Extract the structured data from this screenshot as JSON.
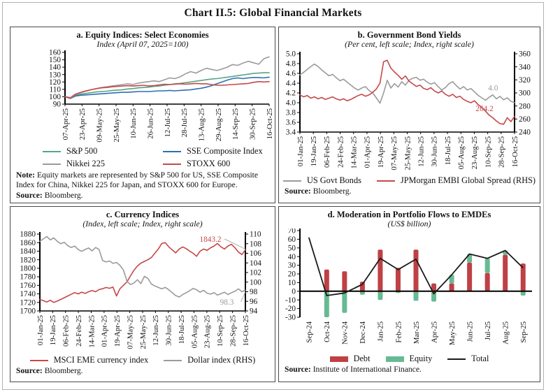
{
  "title": "Chart II.5: Global Financial Markets",
  "notes": {
    "a": {
      "label": "Note: ",
      "text": "Equity markets are represented by S&P 500 for US, SSE Composite Index for China, Nikkei 225 for Japan, and STOXX 600 for Europe."
    }
  },
  "sources": {
    "a": {
      "label": "Source: ",
      "text": "Bloomberg."
    },
    "b": {
      "label": "Source: ",
      "text": "Bloomberg."
    },
    "c": {
      "label": "Source: ",
      "text": "Bloomberg."
    },
    "d": {
      "label": "Source: ",
      "text": "Institute of International Finance."
    }
  },
  "colors": {
    "green": "#55a683",
    "blue": "#2e6fb0",
    "gray": "#9b9b9b",
    "red": "#c64848",
    "debt_red": "#bf4045",
    "equity_green": "#68ba93",
    "black": "#1a1a1a"
  },
  "chart_data": [
    {
      "type": "line",
      "panel": "a",
      "title": "a. Equity Indices: Select Economies",
      "subtitle": "Index (April 07, 2025=100)",
      "left_axis": {
        "min": 90,
        "max": 160,
        "ticks": [
          160,
          150,
          140,
          130,
          120,
          110,
          100,
          90
        ],
        "decimals": 0
      },
      "x_tick_labels": [
        "07-Apr-25",
        "23-Apr-25",
        "09-May-25",
        "25-May-25",
        "10-Jun-25",
        "26-Jun-25",
        "12-Jul-25",
        "28-Jul-25",
        "13-Aug-25",
        "29-Aug-25",
        "14-Sep-25",
        "30-Sep-25",
        "16-Oct-25"
      ],
      "grid": false,
      "legend_position": "bottom",
      "series": [
        {
          "name": "S&P 500",
          "color": "#55a683",
          "axis": "left",
          "values": [
            100,
            98.8,
            101.5,
            103.5,
            104.5,
            105.5,
            106.5,
            107,
            107.5,
            108.5,
            109,
            109.5,
            110.5,
            111,
            112,
            112.5,
            113,
            114,
            114.5,
            115.5,
            116.5,
            117.5,
            118,
            119,
            120,
            121,
            122,
            123,
            124,
            124.5,
            125.5,
            126.5,
            127.5,
            128.5,
            129.5,
            130.5,
            131.5,
            132,
            132.5,
            132.5
          ]
        },
        {
          "name": "SSE Composite Index",
          "color": "#2e6fb0",
          "axis": "left",
          "values": [
            100,
            97.5,
            101,
            102,
            102.5,
            103,
            103.5,
            104,
            104.5,
            105,
            105.5,
            106,
            106,
            106.5,
            107,
            107,
            107,
            107.5,
            108,
            108,
            108.5,
            108,
            108.5,
            109,
            109.5,
            110.5,
            111.5,
            113,
            115,
            117.5,
            120,
            122.5,
            124.5,
            125.5,
            124.5,
            125.5,
            126,
            126,
            125.5,
            126.5
          ]
        },
        {
          "name": "Nikkei 225",
          "color": "#9b9b9b",
          "axis": "left",
          "values": [
            100,
            97.5,
            103,
            105.5,
            107.5,
            109.5,
            111,
            112.5,
            113.5,
            114.5,
            115.5,
            116.5,
            117.5,
            116.5,
            118.5,
            119.5,
            120.5,
            121.5,
            120.5,
            123,
            125.5,
            124.5,
            127,
            131,
            134,
            132,
            135.5,
            138.5,
            137,
            135.5,
            137.5,
            140,
            143.5,
            142.5,
            145.5,
            148,
            146,
            144,
            151.5,
            154
          ]
        },
        {
          "name": "STOXX 600",
          "color": "#c64848",
          "axis": "left",
          "values": [
            100,
            98.5,
            103.5,
            106,
            108,
            109.5,
            111,
            112,
            112.5,
            113.5,
            114,
            114.5,
            115,
            114.5,
            115,
            115.5,
            114.5,
            115,
            116,
            117,
            116.5,
            117,
            117.5,
            117,
            117.5,
            118,
            117.5,
            117.5,
            116.5,
            115.5,
            115.5,
            116,
            116.5,
            117,
            117.5,
            118,
            119.5,
            120.5,
            120,
            120.5
          ]
        }
      ]
    },
    {
      "type": "line",
      "panel": "b",
      "title": "b. Government Bond Yields",
      "subtitle": "(Per cent, left scale; Index, right scale)",
      "left_axis": {
        "min": 3.4,
        "max": 5.0,
        "ticks": [
          5.0,
          4.8,
          4.6,
          4.4,
          4.2,
          4.0,
          3.8,
          3.6,
          3.4
        ],
        "decimals": 1
      },
      "right_axis": {
        "min": 240,
        "max": 360,
        "ticks": [
          360,
          340,
          320,
          300,
          280,
          260,
          240
        ],
        "decimals": 0
      },
      "x_tick_labels": [
        "01-Jan-25",
        "19-Jan-25",
        "06-Feb-25",
        "24-Feb-25",
        "14-Mar-25",
        "01-Apr-25",
        "19-Apr-25",
        "07-May-25",
        "25-May-25",
        "12-Jun-25",
        "30-Jun-25",
        "18-Jul-25",
        "05-Aug-25",
        "23-Aug-25",
        "10-Sep-25",
        "28-Sep-25",
        "16-Oct-25"
      ],
      "grid": false,
      "legend_position": "bottom",
      "annotations": [
        {
          "text": "4.0",
          "color": "#9b9b9b",
          "xf": 0.9,
          "yv": 4.25,
          "axis": "left"
        },
        {
          "text": "264.2",
          "color": "#c64848",
          "xf": 0.86,
          "yv": 272,
          "axis": "right"
        }
      ],
      "series": [
        {
          "name": "US Govt Bonds",
          "color": "#9b9b9b",
          "axis": "left",
          "values": [
            4.57,
            4.62,
            4.68,
            4.74,
            4.79,
            4.74,
            4.67,
            4.61,
            4.55,
            4.58,
            4.51,
            4.45,
            4.48,
            4.42,
            4.36,
            4.3,
            4.26,
            4.3,
            4.33,
            4.25,
            4.2,
            4.1,
            3.99,
            4.2,
            4.46,
            4.3,
            4.39,
            4.32,
            4.43,
            4.36,
            4.46,
            4.5,
            4.52,
            4.46,
            4.48,
            4.42,
            4.38,
            4.41,
            4.33,
            4.26,
            4.31,
            4.39,
            4.43,
            4.35,
            4.28,
            4.33,
            4.26,
            4.29,
            4.22,
            4.15,
            4.1,
            4.05,
            4.11,
            4.16,
            4.08,
            4.13,
            4.06,
            4.1,
            4.03,
            4.0
          ]
        },
        {
          "name": "JPMorgan EMBI Global Spread (RHS)",
          "color": "#c64848",
          "axis": "right",
          "values": [
            297,
            294,
            296,
            292,
            294,
            291,
            293,
            290,
            292,
            294,
            291,
            289,
            291,
            288,
            290,
            293,
            296,
            298,
            295,
            297,
            301,
            306,
            315,
            348,
            350,
            338,
            332,
            327,
            321,
            326,
            318,
            314,
            310,
            312,
            307,
            305,
            308,
            303,
            300,
            303,
            298,
            295,
            298,
            293,
            295,
            290,
            287,
            285,
            288,
            282,
            278,
            272,
            266,
            262,
            257,
            253,
            252,
            262,
            256,
            264.2
          ]
        }
      ]
    },
    {
      "type": "line",
      "panel": "c",
      "title": "c. Currency Indices",
      "subtitle": "(Index, left scale; Index, right scale)",
      "left_axis": {
        "min": 1700,
        "max": 1880,
        "ticks": [
          1880,
          1860,
          1840,
          1820,
          1800,
          1780,
          1760,
          1740,
          1720,
          1700
        ],
        "decimals": 0
      },
      "right_axis": {
        "min": 94,
        "max": 110,
        "ticks": [
          110,
          108,
          106,
          104,
          102,
          100,
          98,
          96,
          94
        ],
        "decimals": 0
      },
      "x_tick_labels": [
        "01-Jan-25",
        "19-Jan-25",
        "06-Feb-25",
        "24-Feb-25",
        "14-Mar-25",
        "01-Apr-25",
        "19-Apr-25",
        "07-May-25",
        "25-May-25",
        "12-Jun-25",
        "30-Jun-25",
        "18-Jul-25",
        "05-Aug-25",
        "23-Aug-25",
        "10-Sep-25",
        "28-Sep-25",
        "16-Oct-25"
      ],
      "grid": false,
      "legend_position": "bottom",
      "annotations": [
        {
          "text": "1843.2",
          "color": "#c64848",
          "xf": 0.83,
          "yv": 1862,
          "axis": "left",
          "conn": {
            "yv": 1845,
            "axis": "left"
          }
        },
        {
          "text": "98.3",
          "color": "#9b9b9b",
          "xf": 0.91,
          "yv": 95.3,
          "axis": "right",
          "conn": {
            "yv": 98.0,
            "axis": "right"
          }
        }
      ],
      "series": [
        {
          "name": "MSCI EME currency index",
          "color": "#c64848",
          "axis": "left",
          "values": [
            1727,
            1724,
            1721,
            1725,
            1720,
            1723,
            1727,
            1731,
            1735,
            1739,
            1743,
            1740,
            1744,
            1741,
            1745,
            1748,
            1745,
            1750,
            1752,
            1755,
            1753,
            1756,
            1735,
            1752,
            1760,
            1768,
            1782,
            1795,
            1805,
            1812,
            1816,
            1820,
            1825,
            1835,
            1845,
            1858,
            1860,
            1850,
            1843,
            1836,
            1845,
            1850,
            1846,
            1840,
            1835,
            1828,
            1840,
            1845,
            1842,
            1848,
            1852,
            1858,
            1850,
            1845,
            1852,
            1856,
            1848,
            1838,
            1832,
            1843.2
          ]
        },
        {
          "name": "Dollar index (RHS)",
          "color": "#9b9b9b",
          "axis": "right",
          "values": [
            108.5,
            109.0,
            109.5,
            108.8,
            109.2,
            108.5,
            108.0,
            108.3,
            107.6,
            107.2,
            107.5,
            106.8,
            106.4,
            106.8,
            107.1,
            106.5,
            107.2,
            106.8,
            104.5,
            104.2,
            104.4,
            103.9,
            104.1,
            103.5,
            102.5,
            100.2,
            99.5,
            99.8,
            100.5,
            99.7,
            101.2,
            100.8,
            99.6,
            99.2,
            98.9,
            98.6,
            98.9,
            98.4,
            97.8,
            97.2,
            96.9,
            97.4,
            97.8,
            98.2,
            98.7,
            98.4,
            97.9,
            98.3,
            97.7,
            97.5,
            97.8,
            97.3,
            97.6,
            97.9,
            97.4,
            97.8,
            98.1,
            98.6,
            98.0,
            98.3
          ]
        }
      ]
    },
    {
      "type": "bar-line",
      "panel": "d",
      "title": "d. Moderation in Portfolio Flows to EMDEs",
      "subtitle": "(US$ billion)",
      "left_axis": {
        "min": -30,
        "max": 70,
        "ticks": [
          70,
          60,
          50,
          40,
          30,
          20,
          10,
          0,
          -10,
          -20,
          -30
        ],
        "decimals": 0
      },
      "categories": [
        "Sep-24",
        "Oct-24",
        "Nov-24",
        "Dec-24",
        "Jan-25",
        "Feb-25",
        "Mar-25",
        "Apr-25",
        "May-25",
        "Jun-25",
        "Jul-25",
        "Aug-25",
        "Sep-25"
      ],
      "grid": false,
      "legend_position": "bottom",
      "series": [
        {
          "name": "Debt",
          "type": "bar",
          "color": "#bf4045",
          "values": [
            null,
            25,
            23,
            11,
            48,
            27,
            48,
            9,
            9,
            33,
            21,
            42,
            32
          ]
        },
        {
          "name": "Equity",
          "type": "bar",
          "color": "#68ba93",
          "values": [
            null,
            -30,
            -25,
            -4,
            -10,
            -2,
            -11,
            -12,
            10,
            10,
            17,
            5,
            -5
          ]
        },
        {
          "name": "Total",
          "type": "line",
          "color": "#1a1a1a",
          "values": [
            62,
            -5,
            -2,
            8,
            38,
            25,
            37,
            -3,
            19,
            43,
            38,
            47,
            27
          ]
        }
      ]
    }
  ]
}
